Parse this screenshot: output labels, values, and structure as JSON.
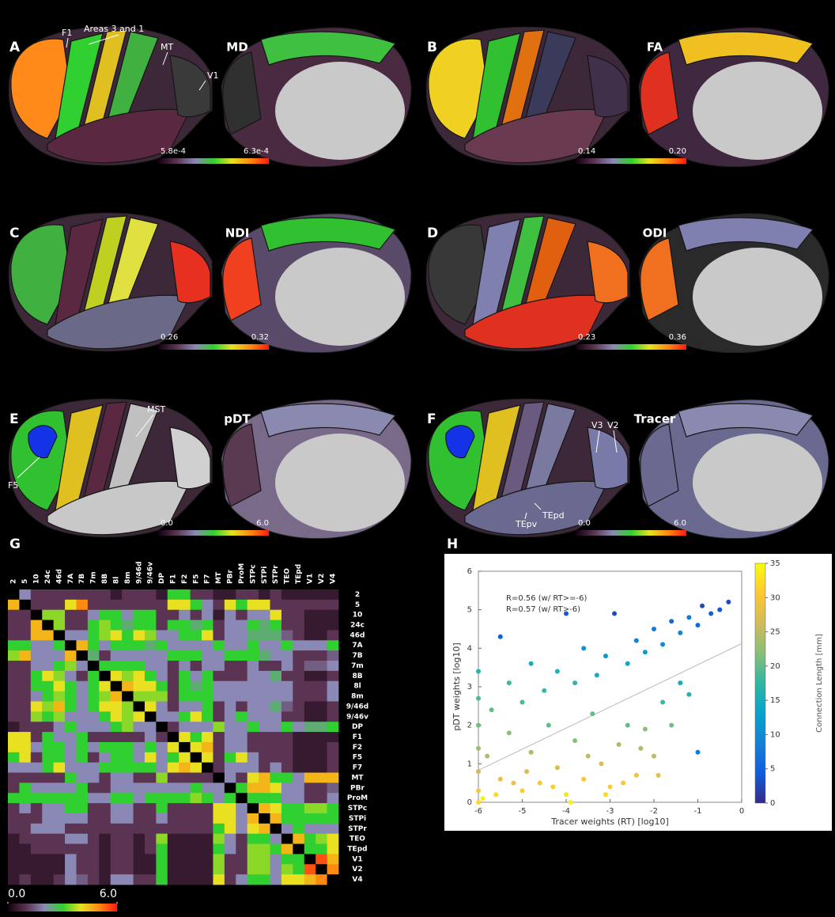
{
  "panels": [
    {
      "letter": "A",
      "title": "MD",
      "colorbar_min": "5.8e-4",
      "colorbar_max": "6.3e-4",
      "annotations": [
        "F1",
        "Areas 3 and 1",
        "MT",
        "V1"
      ]
    },
    {
      "letter": "B",
      "title": "FA",
      "colorbar_min": "0.14",
      "colorbar_max": "0.20",
      "annotations": []
    },
    {
      "letter": "C",
      "title": "NDI",
      "colorbar_min": "0.26",
      "colorbar_max": "0.32",
      "annotations": []
    },
    {
      "letter": "D",
      "title": "ODI",
      "colorbar_min": "0.23",
      "colorbar_max": "0.36",
      "annotations": []
    },
    {
      "letter": "E",
      "title": "pDT",
      "colorbar_min": "0.0",
      "colorbar_max": "6.0",
      "annotations": [
        "MST",
        "F5"
      ]
    },
    {
      "letter": "F",
      "title": "Tracer",
      "colorbar_min": "0.0",
      "colorbar_max": "6.0",
      "annotations": [
        "V3",
        "V2",
        "TEpv",
        "TEpd"
      ]
    }
  ],
  "chart_data": [
    {
      "type": "heatmap",
      "panel_label": "G",
      "categories": [
        "2",
        "5",
        "10",
        "24c",
        "46d",
        "7A",
        "7B",
        "7m",
        "8B",
        "8l",
        "8m",
        "9/46d",
        "9/46v",
        "DP",
        "F1",
        "F2",
        "F5",
        "F7",
        "MT",
        "PBr",
        "ProM",
        "STPc",
        "STPi",
        "STPr",
        "TEO",
        "TEpd",
        "V1",
        "V2",
        "V4"
      ],
      "clim": [
        0,
        6
      ],
      "cticks": [
        {
          "value": 0,
          "label": "0.0"
        },
        {
          "value": 6,
          "label": "6.0"
        }
      ],
      "colormap": [
        "#12000c",
        "#5a3452",
        "#8a88b4",
        "#30d030",
        "#e8e020",
        "#ff8a10",
        "#ff1a10"
      ],
      "values": [
        [
          null,
          2,
          1,
          1,
          1,
          1,
          1,
          1,
          1,
          0.5,
          1,
          1,
          1,
          0.5,
          3,
          3,
          1,
          1,
          0.5,
          0.5,
          1,
          1,
          0.5,
          1,
          0.5,
          0.5,
          0.5,
          0.5,
          0.5
        ],
        [
          4.5,
          null,
          1,
          1,
          1,
          4,
          5,
          1,
          1,
          1,
          1,
          1,
          1,
          1,
          4,
          4,
          3,
          2,
          1,
          4,
          3,
          4,
          4,
          1,
          1,
          1,
          1,
          1,
          1
        ],
        [
          1,
          1,
          null,
          3.5,
          3.5,
          1,
          1,
          2,
          3,
          3,
          2,
          3,
          3,
          1,
          1,
          2,
          1,
          2,
          0.5,
          2,
          1,
          2,
          2,
          4,
          1,
          1,
          0.5,
          0.5,
          0.5
        ],
        [
          1,
          1,
          4.5,
          null,
          3.5,
          1,
          1,
          3,
          3.5,
          3,
          2.5,
          3,
          3,
          1,
          3,
          3,
          2.5,
          3,
          1,
          2,
          2,
          3,
          2.5,
          3,
          1,
          1,
          0.5,
          0.5,
          0.5
        ],
        [
          1,
          1,
          4.5,
          4.5,
          null,
          2,
          2,
          3,
          3.5,
          4,
          3,
          4,
          3.5,
          2,
          2,
          3,
          3,
          4,
          1,
          2,
          2,
          2.5,
          2.5,
          2.5,
          1.5,
          1,
          0.5,
          0.5,
          1
        ],
        [
          3,
          3,
          2,
          2,
          3,
          null,
          4.5,
          3,
          2,
          3,
          3,
          3,
          2.5,
          3,
          2,
          2,
          2,
          2,
          3,
          2,
          2,
          3,
          2,
          2,
          3,
          2,
          2,
          2,
          3
        ],
        [
          3.5,
          4.5,
          2,
          2,
          2,
          4.5,
          null,
          2.5,
          1,
          2,
          2,
          2,
          2,
          2,
          3,
          3,
          3,
          2,
          2,
          3,
          3,
          3,
          2.5,
          2,
          2,
          1,
          1,
          1,
          1.5
        ],
        [
          1,
          1,
          2,
          2,
          3,
          3.5,
          2,
          null,
          3,
          3,
          3,
          3,
          2,
          2,
          1,
          2,
          1,
          2,
          2,
          1,
          1,
          2,
          1,
          1,
          2,
          1,
          1.5,
          1.5,
          2
        ],
        [
          1,
          1,
          3,
          4,
          3.5,
          2,
          1,
          3,
          null,
          4,
          3.5,
          4,
          3,
          2,
          1,
          3,
          2,
          3,
          1,
          1,
          1,
          2,
          2,
          2.5,
          1,
          1,
          0.5,
          0.5,
          1
        ],
        [
          1,
          1,
          3,
          3,
          4,
          3,
          2,
          3,
          4,
          null,
          4.5,
          4,
          4,
          3,
          1,
          3,
          2.5,
          3,
          2,
          2,
          2,
          2,
          2,
          2,
          2,
          1,
          1,
          1,
          2
        ],
        [
          1,
          1,
          2,
          3,
          3.5,
          3,
          2,
          3,
          3.5,
          4.5,
          null,
          3.5,
          3.5,
          3.5,
          1,
          3,
          3,
          3,
          2,
          2,
          2,
          2,
          2,
          2,
          2,
          1,
          1,
          1,
          2
        ],
        [
          1,
          1,
          4,
          3.5,
          4.5,
          3,
          2,
          3,
          4,
          4,
          3.5,
          null,
          4,
          2,
          1,
          2,
          2,
          3,
          1,
          2,
          1,
          2,
          2,
          2.5,
          1.5,
          1,
          0.5,
          0.5,
          1
        ],
        [
          1,
          1,
          3.5,
          3,
          3.5,
          2,
          2,
          2,
          3,
          4,
          3.5,
          4,
          null,
          2,
          2,
          3,
          4,
          3,
          1,
          2,
          3,
          2,
          2,
          2,
          1,
          1,
          0.5,
          0.5,
          1
        ],
        [
          0.5,
          1,
          1,
          1,
          2,
          3,
          2,
          2,
          2,
          3,
          3.5,
          2,
          2,
          null,
          1,
          2,
          2,
          2,
          3.5,
          2,
          2,
          3,
          2,
          2,
          3,
          2,
          2.5,
          2.5,
          3
        ],
        [
          4,
          4,
          1,
          3,
          2,
          2,
          3,
          1,
          1,
          1,
          1,
          1,
          2,
          1,
          null,
          4,
          3,
          4,
          1,
          2,
          2,
          1,
          1,
          1,
          1,
          0.5,
          0.5,
          0.5,
          0.5
        ],
        [
          4,
          4,
          2,
          3,
          3,
          2,
          3,
          2,
          3,
          3,
          3,
          2,
          3,
          2,
          4,
          null,
          4,
          4.5,
          1,
          2,
          2,
          1,
          1,
          1,
          1,
          0.5,
          0.5,
          0.5,
          1
        ],
        [
          3,
          4,
          1,
          3,
          3,
          2,
          3,
          1,
          2,
          3,
          3,
          2,
          4,
          2,
          3,
          4,
          null,
          4,
          1,
          3,
          4,
          2,
          1,
          1,
          1,
          0.5,
          0.5,
          0.5,
          1
        ],
        [
          2,
          2,
          2,
          3,
          4,
          2,
          2,
          2,
          3,
          3,
          3,
          3,
          3,
          2,
          4,
          4.5,
          4,
          null,
          1,
          2,
          2,
          2,
          1,
          2,
          1,
          0.5,
          0.5,
          0.5,
          1
        ],
        [
          1,
          1,
          1,
          1,
          1,
          3,
          2,
          2,
          1,
          2,
          2,
          1,
          1,
          3.5,
          1,
          1,
          1,
          1,
          null,
          2,
          1,
          4,
          4.5,
          3,
          3,
          2,
          4.5,
          4.5,
          4.5
        ],
        [
          1,
          3,
          2,
          2,
          2,
          2,
          3,
          1,
          1,
          2,
          2,
          2,
          2,
          2,
          2,
          2,
          3,
          2,
          2,
          null,
          3,
          4.5,
          4.5,
          4,
          2,
          2,
          1,
          1,
          1.5
        ],
        [
          3,
          3,
          3,
          3,
          3,
          3,
          3,
          2,
          2,
          3,
          3,
          2,
          3,
          3,
          3,
          3,
          3.5,
          3,
          2,
          3,
          null,
          3,
          3,
          3,
          2,
          2,
          1,
          1,
          2
        ],
        [
          1,
          2,
          1,
          2,
          2,
          3,
          3,
          1,
          1,
          2,
          2,
          1,
          1,
          3,
          1,
          1,
          1,
          1,
          4,
          4,
          2,
          null,
          4.5,
          4,
          3,
          3,
          3.5,
          3.5,
          3
        ],
        [
          1,
          1,
          1,
          2,
          2,
          2,
          2,
          1,
          1,
          2,
          2,
          1,
          1,
          2,
          1,
          1,
          1,
          1,
          4,
          4,
          2,
          4.5,
          null,
          4.5,
          3,
          3,
          3,
          3,
          3
        ],
        [
          1,
          1,
          2,
          2,
          2,
          1,
          1,
          1,
          1,
          1,
          1,
          1,
          1,
          1,
          1,
          1,
          1,
          1,
          3,
          4,
          2,
          4,
          4.5,
          null,
          2,
          3,
          2,
          2,
          2
        ],
        [
          0.5,
          1,
          1,
          1,
          1,
          2,
          2,
          1,
          0.5,
          1,
          1,
          0.5,
          1,
          3.5,
          0.5,
          0.5,
          0.5,
          0.5,
          3.5,
          2,
          1,
          3,
          3,
          2,
          null,
          4.5,
          3,
          3.5,
          4
        ],
        [
          0.5,
          0.5,
          1,
          1,
          1,
          1,
          1,
          1,
          0.5,
          1,
          1,
          0.5,
          1,
          3,
          0.5,
          0.5,
          0.5,
          0.5,
          3,
          2,
          1,
          3.5,
          3.5,
          3,
          4.5,
          null,
          3,
          3,
          4
        ],
        [
          0.5,
          0.5,
          0.5,
          0.5,
          0.5,
          2,
          1,
          1,
          0.5,
          1,
          1,
          0.5,
          0.5,
          3,
          0.5,
          0.5,
          0.5,
          0.5,
          3.5,
          1,
          1,
          3.5,
          3.5,
          2,
          3,
          3,
          null,
          5.5,
          4.5
        ],
        [
          0.5,
          0.5,
          0.5,
          0.5,
          0.5,
          2,
          1,
          1,
          0.5,
          1,
          1,
          0.5,
          0.5,
          3,
          0.5,
          0.5,
          0.5,
          0.5,
          3.5,
          1,
          1,
          3.5,
          3.5,
          2,
          3.5,
          3,
          5.5,
          null,
          5
        ],
        [
          0.5,
          1,
          0.5,
          0.5,
          1,
          2,
          1.5,
          1,
          0.5,
          2,
          2,
          1,
          1,
          3,
          0.5,
          0.5,
          0.5,
          0.5,
          4,
          1,
          2,
          3,
          3,
          2,
          4,
          4,
          4.5,
          5,
          null
        ]
      ]
    },
    {
      "type": "scatter",
      "panel_label": "H",
      "x_label": "Tracer weights (RT) [log10]",
      "y_label": "pDT weights [log10]",
      "color_label": "Connection Length [mm]",
      "annotations": [
        "R=0.56 (w/ RT>=-6)",
        "R=0.57 (w/ RT>-6)"
      ],
      "xlim": [
        -6,
        0
      ],
      "ylim": [
        0,
        6
      ],
      "xticks": [
        -6,
        -5,
        -4,
        -3,
        -2,
        -1,
        0
      ],
      "yticks": [
        0,
        1,
        2,
        3,
        4,
        5,
        6
      ],
      "clim": [
        0,
        35
      ],
      "cticks": [
        0,
        5,
        10,
        15,
        20,
        25,
        30,
        35
      ],
      "colormap": [
        "#352a87",
        "#0f5cdd",
        "#1481d6",
        "#06a4ca",
        "#2eb7a4",
        "#87bf77",
        "#d1bb59",
        "#fec832",
        "#f9fb0e"
      ],
      "x": [
        -0.3,
        -0.5,
        -0.7,
        -0.9,
        -1.0,
        -1.2,
        -1.4,
        -1.6,
        -1.8,
        -2.0,
        -2.2,
        -2.4,
        -2.6,
        -2.9,
        -3.1,
        -3.3,
        -3.6,
        -3.8,
        -4.0,
        -4.2,
        -4.5,
        -4.8,
        -5.0,
        -5.3,
        -5.5,
        -5.7,
        -6,
        -6,
        -6,
        -6,
        -6,
        -6,
        -6,
        -5.8,
        -5.5,
        -5.3,
        -5.0,
        -4.8,
        -4.6,
        -4.4,
        -4.2,
        -4.0,
        -3.8,
        -3.6,
        -3.4,
        -3.2,
        -3.0,
        -2.8,
        -2.6,
        -2.4,
        -2.2,
        -2.0,
        -1.8,
        -1.6,
        -1.4,
        -1.2,
        -1.0,
        -5.9,
        -5.6,
        -5.2,
        -4.9,
        -4.3,
        -3.9,
        -3.5,
        -3.1,
        -2.7,
        -2.3,
        -1.9
      ],
      "values": [
        5.2,
        5.0,
        4.9,
        5.1,
        4.6,
        4.8,
        4.4,
        4.7,
        4.1,
        4.5,
        3.9,
        4.2,
        3.6,
        4.9,
        3.8,
        3.3,
        4.0,
        3.1,
        4.9,
        3.4,
        2.9,
        3.6,
        2.6,
        3.1,
        4.3,
        2.4,
        3.4,
        2.7,
        2.0,
        1.4,
        0.8,
        0.3,
        0,
        1.2,
        0.6,
        1.8,
        0.3,
        1.3,
        0.5,
        2.0,
        0.9,
        0.2,
        1.6,
        0.6,
        2.3,
        1.0,
        0.4,
        1.5,
        2.0,
        0.7,
        1.9,
        1.2,
        2.6,
        2.0,
        3.1,
        2.8,
        1.3,
        0.1,
        0.2,
        0.5,
        0.8,
        0.4,
        0.0,
        1.2,
        0.2,
        0.5,
        1.4,
        0.7
      ],
      "color_values": [
        3,
        4,
        5,
        3,
        6,
        8,
        9,
        6,
        10,
        8,
        12,
        9,
        14,
        3,
        12,
        15,
        11,
        17,
        4,
        16,
        18,
        15,
        19,
        18,
        5,
        20,
        17,
        19,
        21,
        23,
        26,
        30,
        32,
        24,
        28,
        22,
        31,
        24,
        30,
        20,
        27,
        33,
        22,
        30,
        20,
        27,
        31,
        24,
        20,
        29,
        22,
        25,
        18,
        21,
        15,
        16,
        8,
        34,
        32,
        29,
        27,
        31,
        34,
        25,
        32,
        30,
        24,
        28
      ],
      "fit_line": {
        "x": [
          -6,
          0
        ],
        "values": [
          0.83,
          4.12
        ]
      }
    }
  ]
}
